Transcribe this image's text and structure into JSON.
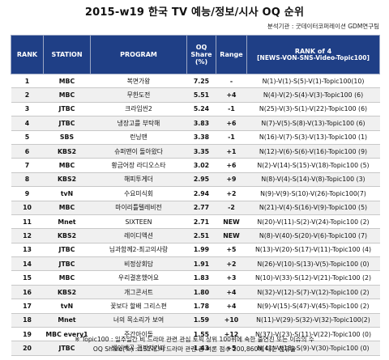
{
  "title": "2015-w19  한국 TV 예능/정보/시사  OQ 순위",
  "source": "분석기관 : 굿데이터코퍼레이션  GDM연구팀",
  "headers": {
    "rank": "RANK",
    "station": "STATION",
    "program": "PROGRAM",
    "share_l1": "OQ",
    "share_l2": "Share",
    "share_l3": "(%)",
    "range": "Range",
    "rank4_l1": "RANK of 4",
    "rank4_l2": "[NEWS-VON-SNS-Video-Topic100]"
  },
  "rows": [
    {
      "rank": "1",
      "station": "MBC",
      "program": "복면가왕",
      "share": "7.25",
      "change": "-",
      "rank4": "N(1)-V(1)-S(5)-V(1)-Topic100(10)"
    },
    {
      "rank": "2",
      "station": "MBC",
      "program": "무한도전",
      "share": "5.51",
      "change": "+4",
      "rank4": "N(4)-V(2)-S(4)-V(3)-Topic100  (6)"
    },
    {
      "rank": "3",
      "station": "JTBC",
      "program": "크라임씬2",
      "share": "5.24",
      "change": "-1",
      "rank4": "N(25)-V(3)-S(1)-V(22)-Topic100  (6)"
    },
    {
      "rank": "4",
      "station": "JTBC",
      "program": "냉장고를 부탁해",
      "share": "3.83",
      "change": "+6",
      "rank4": "N(7)-V(5)-S(8)-V(13)-Topic100  (6)"
    },
    {
      "rank": "5",
      "station": "SBS",
      "program": "런닝맨",
      "share": "3.38",
      "change": "-1",
      "rank4": "N(16)-V(7)-S(3)-V(13)-Topic100  (1)"
    },
    {
      "rank": "6",
      "station": "KBS2",
      "program": "슈퍼맨이 돌아왔다",
      "share": "3.35",
      "change": "+1",
      "rank4": "N(12)-V(6)-S(6)-V(16)-Topic100  (9)"
    },
    {
      "rank": "7",
      "station": "MBC",
      "program": "황금어장 라디오스타",
      "share": "3.02",
      "change": "+6",
      "rank4": "N(2)-V(14)-S(15)-V(18)-Topic100  (5)"
    },
    {
      "rank": "8",
      "station": "KBS2",
      "program": "해피투게더",
      "share": "2.95",
      "rank4": "N(8)-V(4)-S(14)-V(8)-Topic100  (3)",
      "change": "+9"
    },
    {
      "rank": "9",
      "station": "tvN",
      "program": "수요미식회",
      "share": "2.94",
      "change": "+2",
      "rank4": "N(9)-V(9)-S(10)-V(26)-Topic100(7)"
    },
    {
      "rank": "10",
      "station": "MBC",
      "program": "마이리틀텔레비전",
      "share": "2.77",
      "change": "-2",
      "rank4": "N(21)-V(4)-S(16)-V(9)-Topic100  (5)"
    },
    {
      "rank": "11",
      "station": "Mnet",
      "program": "SIXTEEN",
      "share": "2.71",
      "change": "NEW",
      "rank4": "N(20)-V(11)-S(2)-V(24)-Topic100  (2)"
    },
    {
      "rank": "12",
      "station": "KBS2",
      "program": "레이디액션",
      "share": "2.51",
      "change": "NEW",
      "rank4": "N(8)-V(40)-S(20)-V(6)-Topic100  (7)"
    },
    {
      "rank": "13",
      "station": "JTBC",
      "program": "님과함께2-최고의사랑",
      "share": "1.99",
      "change": "+5",
      "rank4": "N(13)-V(20)-S(17)-V(11)-Topic100  (4)"
    },
    {
      "rank": "14",
      "station": "JTBC",
      "program": "비정상회담",
      "share": "1.91",
      "change": "+2",
      "rank4": "N(26)-V(10)-S(13)-V(5)-Topic100  (0)"
    },
    {
      "rank": "15",
      "station": "MBC",
      "program": "우리결혼했어요",
      "share": "1.83",
      "change": "+3",
      "rank4": "N(10)-V(33)-S(12)-V(21)-Topic100  (2)"
    },
    {
      "rank": "16",
      "station": "KBS2",
      "program": "개그콘서트",
      "share": "1.80",
      "change": "+4",
      "rank4": "N(32)-V(12)-S(7)-V(12)-Topic100  (2)"
    },
    {
      "rank": "17",
      "station": "tvN",
      "program": "꽃보다 할배 그리스편",
      "share": "1.78",
      "change": "+4",
      "rank4": "N(9)-V(15)-S(47)-V(45)-Topic100  (2)"
    },
    {
      "rank": "18",
      "station": "Mnet",
      "program": "너의 목소리가 보여",
      "share": "1.59",
      "change": "+10",
      "rank4": "N(11)-V(29)-S(32)-V(32)-Topic100(2)"
    },
    {
      "rank": "19",
      "station": "MBC every1",
      "program": "주간아이돌",
      "share": "1.55",
      "change": "+12",
      "rank4": "N(37)-V(23)-S(11)-V(22)-Topic100  (0)"
    },
    {
      "rank": "20",
      "station": "JTBC",
      "program": "백인백곡 끝까지간다",
      "share": "1.43",
      "change": "+5",
      "rank4": "N(41)-V(18)-S(9)-V(30)-Topic100  (0)"
    }
  ],
  "footnote_1": "※ Topic100 : 일주일간 비 드라마 관련 관심 토픽 상위 100위에 속한 출연진 또는 이슈의 수",
  "footnote_2": "OQ Share(%) : 151개 비 드라마 관련 총 여론 점수 200,860에 대한 점유율"
}
